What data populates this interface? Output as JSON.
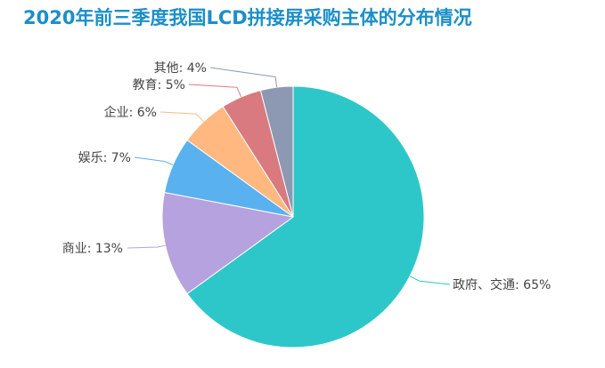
{
  "chart_data": {
    "type": "pie",
    "title": "2020年前三季度我国LCD拼接屏采购主体的分布情况",
    "slices": [
      {
        "label": "政府、交通",
        "value": 65,
        "display": "政府、交通: 65%",
        "color": "#2ec7c9"
      },
      {
        "label": "商业",
        "value": 13,
        "display": "商业: 13%",
        "color": "#b6a2de"
      },
      {
        "label": "娱乐",
        "value": 7,
        "display": "娱乐: 7%",
        "color": "#5ab1ef"
      },
      {
        "label": "企业",
        "value": 6,
        "display": "企业: 6%",
        "color": "#ffb980"
      },
      {
        "label": "教育",
        "value": 5,
        "display": "教育: 5%",
        "color": "#d87a80"
      },
      {
        "label": "其他",
        "value": 4,
        "display": "其他: 4%",
        "color": "#8d98b3"
      }
    ]
  }
}
